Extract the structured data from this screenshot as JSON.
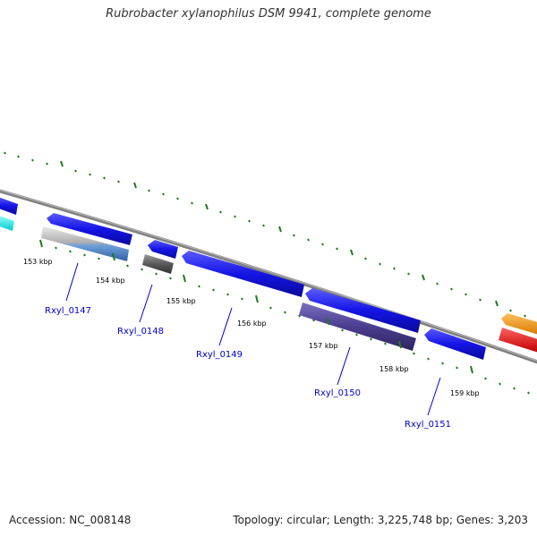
{
  "title": "Rubrobacter xylanophilus DSM 9941, complete genome",
  "footer": {
    "accession": "Accession: NC_008148",
    "summary": "Topology: circular; Length: 3,225,748 bp; Genes: 3,203"
  },
  "colors": {
    "backbone": "#808080",
    "tick": "#1f7a1f",
    "gene_blue": "#1414e6",
    "gene_purple": "#4b3d8f",
    "gene_gray": "#5a5a5a",
    "gene_cyan": "#19e6e6",
    "gene_orange": "#f28c00",
    "gene_red": "#e60000",
    "label": "#0000cc"
  },
  "scale_labels": [
    "153 kbp",
    "154 kbp",
    "155 kbp",
    "156 kbp",
    "157 kbp",
    "158 kbp",
    "159 kbp"
  ],
  "gene_labels": [
    "Rxyl_0147",
    "Rxyl_0148",
    "Rxyl_0149",
    "Rxyl_0150",
    "Rxyl_0151"
  ]
}
